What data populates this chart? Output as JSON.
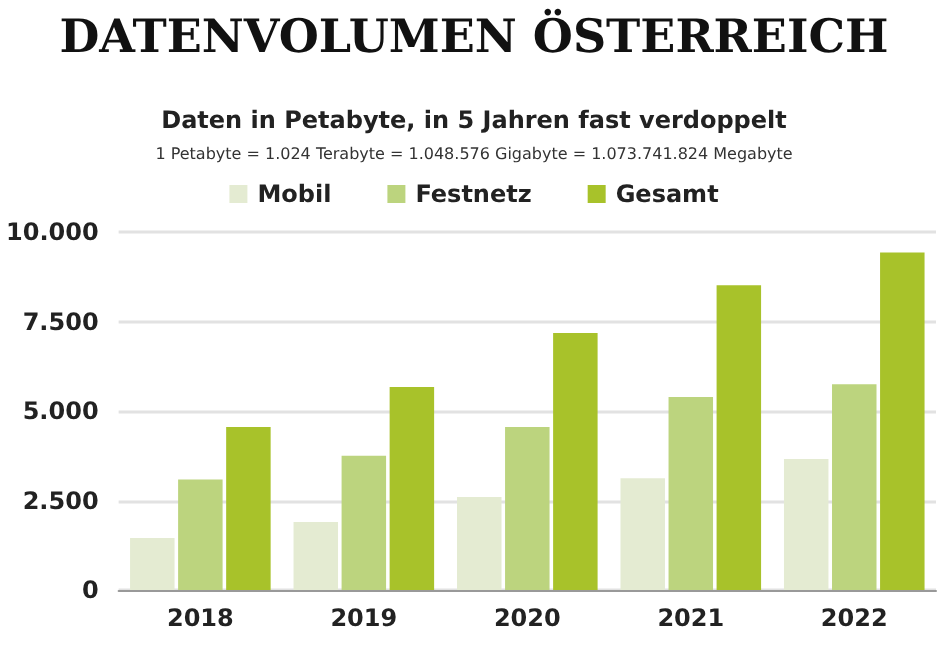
{
  "chart_data": {
    "type": "bar",
    "title": "DATENVOLUMEN ÖSTERREICH",
    "subtitle": "Daten in Petabyte, in 5 Jahren fast verdoppelt",
    "annotations": [
      "1 Petabyte = 1.024 Terabyte = 1.048.576 Gigabyte = 1.073.741.824 Megabyte"
    ],
    "categories": [
      "2018",
      "2019",
      "2020",
      "2021",
      "2022"
    ],
    "series": [
      {
        "name": "Mobil",
        "color": "#e4ebd2",
        "values": [
          1450,
          1900,
          2600,
          3120,
          3660
        ]
      },
      {
        "name": "Festnetz",
        "color": "#bcd47e",
        "values": [
          3090,
          3750,
          4550,
          5390,
          5750
        ]
      },
      {
        "name": "Gesamt",
        "color": "#a8c22a",
        "values": [
          4550,
          5670,
          7180,
          8510,
          9430
        ]
      }
    ],
    "ylim": [
      0,
      10000
    ],
    "yticks": [
      {
        "value": 0,
        "label": "0"
      },
      {
        "value": 2500,
        "label": "2.500"
      },
      {
        "value": 5000,
        "label": "5.000"
      },
      {
        "value": 7500,
        "label": "7.500"
      },
      {
        "value": 10000,
        "label": "10.000"
      }
    ],
    "grid": "y",
    "legend": "top"
  }
}
